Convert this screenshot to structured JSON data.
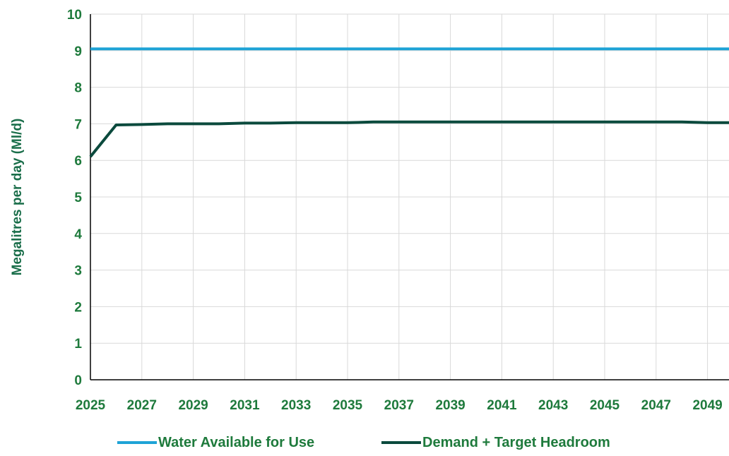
{
  "chart_data": {
    "type": "line",
    "title": "",
    "xlabel": "",
    "ylabel": "Megalitres per day (Ml/d)",
    "x": [
      2025,
      2026,
      2027,
      2028,
      2029,
      2030,
      2031,
      2032,
      2033,
      2034,
      2035,
      2036,
      2037,
      2038,
      2039,
      2040,
      2041,
      2042,
      2043,
      2044,
      2045,
      2046,
      2047,
      2048,
      2049,
      2050
    ],
    "x_tick_labels": [
      "2025",
      "2027",
      "2029",
      "2031",
      "2033",
      "2035",
      "2037",
      "2039",
      "2041",
      "2043",
      "2045",
      "2047",
      "2049"
    ],
    "y_tick_labels": [
      "0",
      "1",
      "2",
      "3",
      "4",
      "5",
      "6",
      "7",
      "8",
      "9",
      "10"
    ],
    "ylim": [
      0,
      10
    ],
    "grid": true,
    "legend_position": "bottom",
    "series": [
      {
        "name": "Water Available for Use",
        "color": "#1ea3d6",
        "values": [
          9.05,
          9.05,
          9.05,
          9.05,
          9.05,
          9.05,
          9.05,
          9.05,
          9.05,
          9.05,
          9.05,
          9.05,
          9.05,
          9.05,
          9.05,
          9.05,
          9.05,
          9.05,
          9.05,
          9.05,
          9.05,
          9.05,
          9.05,
          9.05,
          9.05,
          9.05
        ]
      },
      {
        "name": "Demand + Target Headroom",
        "color": "#0b4a3d",
        "values": [
          6.1,
          6.97,
          6.98,
          7.0,
          7.0,
          7.0,
          7.02,
          7.02,
          7.03,
          7.03,
          7.03,
          7.05,
          7.05,
          7.05,
          7.05,
          7.05,
          7.05,
          7.05,
          7.05,
          7.05,
          7.05,
          7.05,
          7.05,
          7.05,
          7.03,
          7.03
        ]
      }
    ]
  },
  "colors": {
    "tick_label": "#1e7a3c",
    "axis_title": "#1a6e4a",
    "grid": "#d9d9d9",
    "axis": "#000000"
  }
}
